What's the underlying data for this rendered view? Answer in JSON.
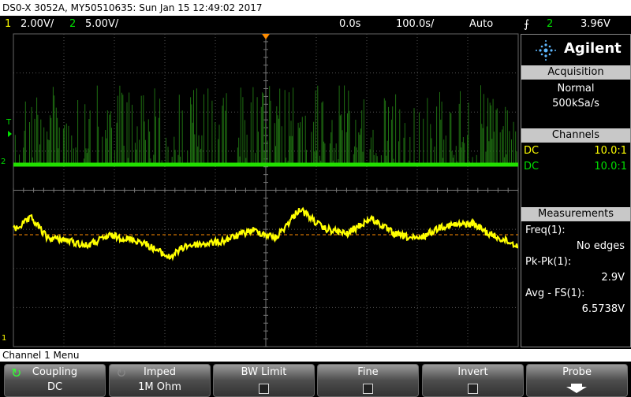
{
  "header": {
    "title": "DS0-X 3052A, MY50510635: Sun Jan 15 12:49:02 2017"
  },
  "status_bar": {
    "channel1": "1",
    "channel1_scale": "2.00V/",
    "channel2": "2",
    "channel2_scale": "5.00V/",
    "time_offset": "0.0s",
    "time_scale": "100.0s/",
    "trigger_mode": "Auto",
    "trigger_source": "2",
    "trigger_level": "3.96V"
  },
  "markers": {
    "trigger": "T",
    "channel2": "2",
    "channel1": "1"
  },
  "side_panel": {
    "brand": "Agilent",
    "acquisition": {
      "title": "Acquisition",
      "mode": "Normal",
      "rate": "500kSa/s"
    },
    "channels": {
      "title": "Channels",
      "rows": [
        {
          "coupling": "DC",
          "probe": "10.0:1"
        },
        {
          "coupling": "DC",
          "probe": "10.0:1"
        }
      ]
    },
    "measurements": {
      "title": "Measurements",
      "items": [
        {
          "label": "Freq(1):",
          "value": "No edges"
        },
        {
          "label": "Pk-Pk(1):",
          "value": "2.9V"
        },
        {
          "label": "Avg - FS(1):",
          "value": "6.5738V"
        }
      ]
    }
  },
  "menu": {
    "title": "Channel 1 Menu",
    "softkeys": [
      {
        "label": "Coupling",
        "value": "DC"
      },
      {
        "label": "Imped",
        "value": "1M Ohm"
      },
      {
        "label": "BW Limit"
      },
      {
        "label": "Fine"
      },
      {
        "label": "Invert"
      },
      {
        "label": "Probe"
      }
    ]
  }
}
